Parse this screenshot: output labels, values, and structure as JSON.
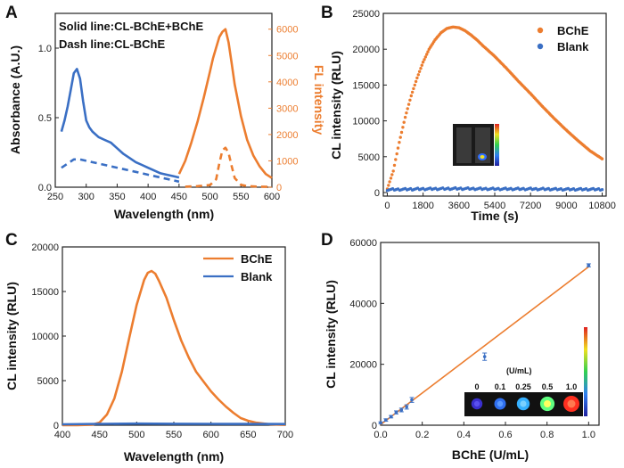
{
  "colors": {
    "blue": "#3a6fc4",
    "orange": "#ec7d2f",
    "axis": "#222222"
  },
  "chart_data": [
    {
      "panel": "A",
      "type": "line",
      "annotations": [
        "Solid line:CL-BChE+BChE",
        "Dash line:CL-BChE"
      ],
      "xlabel": "Wavelength (nm)",
      "ylabel": "Absorbance (A.U.)",
      "y2label": "FL intensity",
      "xlim": [
        250,
        600
      ],
      "ylim": [
        0,
        1.25
      ],
      "y2lim": [
        0,
        6600
      ],
      "xticks": [
        "250",
        "300",
        "350",
        "400",
        "450",
        "500",
        "550",
        "600"
      ],
      "yticks": [
        "0.0",
        "0.5",
        "1.0"
      ],
      "y2ticks": [
        "0",
        "1000",
        "2000",
        "3000",
        "4000",
        "5000",
        "6000"
      ],
      "series": [
        {
          "axis": "left",
          "style": "solid",
          "color": "blue",
          "x": [
            260,
            265,
            270,
            275,
            280,
            285,
            290,
            295,
            300,
            305,
            310,
            320,
            330,
            340,
            350,
            360,
            370,
            380,
            390,
            400,
            410,
            420,
            430,
            440,
            450
          ],
          "y": [
            0.4,
            0.48,
            0.58,
            0.7,
            0.82,
            0.85,
            0.78,
            0.62,
            0.48,
            0.43,
            0.4,
            0.36,
            0.34,
            0.32,
            0.28,
            0.24,
            0.21,
            0.18,
            0.16,
            0.14,
            0.12,
            0.1,
            0.09,
            0.08,
            0.07
          ]
        },
        {
          "axis": "left",
          "style": "dash",
          "color": "blue",
          "x": [
            260,
            270,
            280,
            290,
            300,
            320,
            340,
            360,
            380,
            400,
            420,
            440,
            450
          ],
          "y": [
            0.14,
            0.17,
            0.2,
            0.2,
            0.19,
            0.17,
            0.15,
            0.13,
            0.11,
            0.09,
            0.07,
            0.05,
            0.04
          ]
        },
        {
          "axis": "right",
          "style": "solid",
          "color": "orange",
          "x": [
            450,
            460,
            470,
            480,
            490,
            500,
            505,
            510,
            515,
            520,
            525,
            530,
            535,
            540,
            550,
            560,
            570,
            580,
            590,
            600
          ],
          "y": [
            500,
            1000,
            1700,
            2500,
            3400,
            4400,
            4900,
            5300,
            5700,
            5900,
            6000,
            5500,
            4700,
            3900,
            2700,
            1800,
            1200,
            800,
            500,
            350
          ]
        },
        {
          "axis": "right",
          "style": "dash",
          "color": "orange",
          "x": [
            460,
            480,
            500,
            510,
            515,
            520,
            525,
            530,
            535,
            540,
            550,
            560,
            580,
            600
          ],
          "y": [
            20,
            40,
            80,
            300,
            900,
            1400,
            1500,
            1300,
            800,
            350,
            90,
            40,
            20,
            10
          ]
        }
      ]
    },
    {
      "panel": "B",
      "type": "scatter",
      "xlabel": "Time (s)",
      "ylabel": "CL intensity (RLU)",
      "xlim": [
        -200,
        11000
      ],
      "ylim": [
        -500,
        25000
      ],
      "xticks": [
        "0",
        "1800",
        "3600",
        "5400",
        "7200",
        "9000",
        "10800"
      ],
      "yticks": [
        "0",
        "5000",
        "10000",
        "15000",
        "20000",
        "25000"
      ],
      "legend": [
        "BChE",
        "Blank"
      ],
      "series": [
        {
          "name": "BChE",
          "color": "orange",
          "x": [
            0,
            300,
            600,
            900,
            1200,
            1500,
            1800,
            2100,
            2400,
            2700,
            3000,
            3300,
            3600,
            3900,
            4200,
            4500,
            4800,
            5400,
            6000,
            6600,
            7200,
            7800,
            8400,
            9000,
            9600,
            10200,
            10800
          ],
          "y": [
            500,
            3000,
            7000,
            10500,
            13500,
            16000,
            18200,
            20000,
            21300,
            22300,
            22900,
            23100,
            23000,
            22600,
            22000,
            21300,
            20500,
            19000,
            17300,
            15500,
            13800,
            12000,
            10300,
            8700,
            7200,
            5800,
            4700
          ]
        },
        {
          "name": "Blank",
          "color": "blue",
          "x": [
            0,
            1800,
            3600,
            5400,
            7200,
            9000,
            10800
          ],
          "y": [
            400,
            500,
            550,
            500,
            500,
            450,
            450
          ]
        }
      ]
    },
    {
      "panel": "C",
      "type": "line",
      "xlabel": "Wavelength (nm)",
      "ylabel": "CL intensity (RLU)",
      "xlim": [
        400,
        700
      ],
      "ylim": [
        0,
        20000
      ],
      "xticks": [
        "400",
        "450",
        "500",
        "550",
        "600",
        "650",
        "700"
      ],
      "yticks": [
        "0",
        "5000",
        "10000",
        "15000",
        "20000"
      ],
      "legend": [
        "BChE",
        "Blank"
      ],
      "series": [
        {
          "name": "BChE",
          "color": "orange",
          "x": [
            400,
            420,
            440,
            450,
            460,
            470,
            480,
            490,
            500,
            510,
            515,
            520,
            525,
            530,
            540,
            550,
            560,
            570,
            580,
            590,
            600,
            610,
            620,
            630,
            640,
            650,
            660,
            680,
            700
          ],
          "y": [
            0,
            0,
            50,
            300,
            1200,
            3000,
            6000,
            9800,
            13500,
            16300,
            17100,
            17300,
            17000,
            16200,
            14300,
            11800,
            9500,
            7600,
            6000,
            4900,
            3800,
            2900,
            2100,
            1400,
            800,
            500,
            300,
            100,
            40
          ]
        },
        {
          "name": "Blank",
          "color": "blue",
          "x": [
            400,
            450,
            500,
            550,
            600,
            650,
            700
          ],
          "y": [
            100,
            150,
            180,
            160,
            150,
            140,
            130
          ]
        }
      ]
    },
    {
      "panel": "D",
      "type": "scatter",
      "xlabel": "BChE (U/mL)",
      "ylabel": "CL intensity (RLU)",
      "xlim": [
        0,
        1.05
      ],
      "ylim": [
        0,
        60000
      ],
      "xticks": [
        "0.0",
        "0.2",
        "0.4",
        "0.6",
        "0.8",
        "1.0"
      ],
      "yticks": [
        "0",
        "20000",
        "40000",
        "60000"
      ],
      "points": {
        "x": [
          0,
          0.025,
          0.05,
          0.075,
          0.1,
          0.125,
          0.15,
          0.5,
          1.0
        ],
        "y": [
          800,
          1700,
          2800,
          4200,
          5000,
          6000,
          8300,
          22500,
          52500
        ],
        "err": [
          300,
          400,
          400,
          500,
          600,
          700,
          800,
          1200,
          500
        ]
      },
      "fit": {
        "x": [
          0,
          1.0
        ],
        "y": [
          200,
          52000
        ]
      },
      "inset_unit": "(U/mL)",
      "inset_labels": [
        "0",
        "0.1",
        "0.25",
        "0.5",
        "1.0"
      ],
      "inset_intensity": [
        0.05,
        0.15,
        0.4,
        0.7,
        1.0
      ]
    }
  ]
}
